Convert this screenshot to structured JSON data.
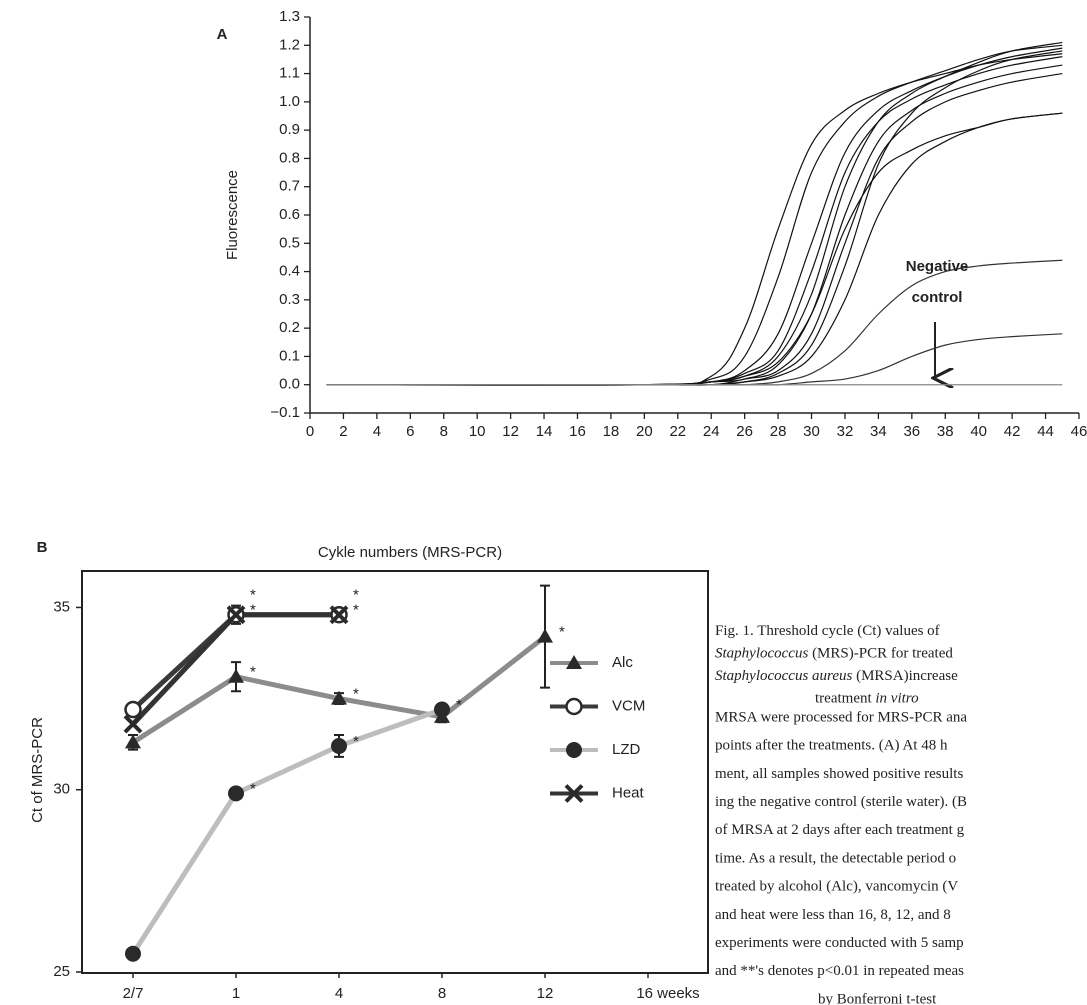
{
  "chart_data": [
    {
      "type": "line",
      "panel": "A",
      "xlabel": "Cykle numbers (MRS-PCR)",
      "ylabel": "Fluorescence",
      "x": [
        1,
        20,
        24,
        26,
        28,
        30,
        32,
        34,
        36,
        38,
        40,
        42,
        45
      ],
      "series": [
        {
          "color": "#111111",
          "values": [
            0,
            0,
            0.03,
            0.2,
            0.55,
            0.85,
            0.97,
            1.03,
            1.07,
            1.1,
            1.13,
            1.15,
            1.17
          ]
        },
        {
          "color": "#111111",
          "values": [
            0,
            0,
            0.02,
            0.1,
            0.38,
            0.75,
            0.93,
            1.02,
            1.07,
            1.11,
            1.15,
            1.18,
            1.2
          ]
        },
        {
          "color": "#111111",
          "values": [
            0,
            0,
            0.01,
            0.05,
            0.18,
            0.5,
            0.82,
            0.97,
            1.04,
            1.09,
            1.13,
            1.16,
            1.19
          ]
        },
        {
          "color": "#111111",
          "values": [
            0,
            0,
            0.01,
            0.04,
            0.12,
            0.4,
            0.75,
            0.93,
            1.01,
            1.06,
            1.1,
            1.13,
            1.16
          ]
        },
        {
          "color": "#111111",
          "values": [
            0,
            0,
            0.01,
            0.03,
            0.1,
            0.32,
            0.7,
            0.93,
            1.03,
            1.09,
            1.14,
            1.18,
            1.21
          ]
        },
        {
          "color": "#111111",
          "values": [
            0,
            0,
            0.01,
            0.02,
            0.07,
            0.25,
            0.6,
            0.86,
            0.97,
            1.03,
            1.07,
            1.1,
            1.13
          ]
        },
        {
          "color": "#111111",
          "values": [
            0,
            0,
            0,
            0.02,
            0.05,
            0.18,
            0.5,
            0.8,
            0.93,
            1.0,
            1.04,
            1.07,
            1.1
          ]
        },
        {
          "color": "#111111",
          "values": [
            0,
            0,
            0,
            0.01,
            0.04,
            0.14,
            0.42,
            0.78,
            0.96,
            1.05,
            1.11,
            1.15,
            1.18
          ]
        },
        {
          "color": "#111111",
          "values": [
            0,
            0,
            0,
            0.01,
            0.03,
            0.1,
            0.3,
            0.6,
            0.78,
            0.86,
            0.91,
            0.94,
            0.96
          ]
        },
        {
          "color": "#111111",
          "values": [
            0,
            0,
            0.01,
            0.03,
            0.08,
            0.25,
            0.55,
            0.75,
            0.83,
            0.88,
            0.91,
            0.94,
            0.96
          ]
        },
        {
          "color": "#333333",
          "values": [
            0,
            0,
            0,
            0,
            0.01,
            0.04,
            0.12,
            0.25,
            0.35,
            0.4,
            0.42,
            0.43,
            0.44
          ]
        },
        {
          "color": "#333333",
          "values": [
            0,
            0,
            0,
            0,
            0,
            0.01,
            0.02,
            0.05,
            0.1,
            0.14,
            0.16,
            0.17,
            0.18
          ]
        },
        {
          "color": "#888888",
          "values": [
            0,
            0,
            0,
            0,
            0,
            0,
            0,
            0,
            0,
            0,
            0,
            0,
            0
          ]
        }
      ],
      "annotation": [
        "Negative",
        "control"
      ],
      "xlim": [
        0,
        46
      ],
      "xticks": [
        0,
        2,
        4,
        6,
        8,
        10,
        12,
        14,
        16,
        18,
        20,
        22,
        24,
        26,
        28,
        30,
        32,
        34,
        36,
        38,
        40,
        42,
        44,
        46
      ],
      "ylim": [
        -0.1,
        1.3
      ],
      "yticks": [
        {
          "value": -0.1,
          "label": "−0.1"
        },
        {
          "value": 0,
          "label": "0.0"
        },
        0.1,
        0.2,
        0.3,
        0.4,
        0.5,
        0.6,
        0.7,
        0.8,
        0.9,
        {
          "value": 1,
          "label": "1.0"
        },
        1.1,
        1.2,
        1.3
      ]
    },
    {
      "type": "line",
      "panel": "B",
      "ylabel": "Ct of MRS-PCR",
      "categories": [
        "2/7",
        "1",
        "4",
        "8",
        "12",
        "16 weeks"
      ],
      "series": [
        {
          "name": "Alc",
          "color": "#8c8c8c",
          "marker": "triangle",
          "marker_color": "#2a2a2a",
          "values": [
            31.3,
            33.1,
            32.5,
            32.0,
            34.2,
            null
          ],
          "errors": [
            0.2,
            0.4,
            0.15,
            0.15,
            1.4,
            null
          ],
          "significance": [
            null,
            "*",
            "*",
            null,
            "*",
            null
          ]
        },
        {
          "name": "VCM",
          "color": "#3a3a3a",
          "marker": "open-circle",
          "marker_color": "#2a2a2a",
          "values": [
            32.2,
            34.8,
            34.8,
            null,
            null,
            null
          ],
          "errors": [
            null,
            0.25,
            null,
            null,
            null,
            null
          ],
          "significance": [
            null,
            "*",
            "*",
            null,
            null,
            null
          ]
        },
        {
          "name": "LZD",
          "color": "#bdbdbd",
          "marker": "circle",
          "marker_color": "#2a2a2a",
          "values": [
            25.5,
            29.9,
            31.2,
            32.2,
            null,
            null
          ],
          "errors": [
            null,
            null,
            0.3,
            null,
            null,
            null
          ],
          "significance": [
            null,
            "*",
            "*",
            "*",
            null,
            null
          ]
        },
        {
          "name": "Heat",
          "color": "#333333",
          "marker": "x",
          "marker_color": "#2a2a2a",
          "values": [
            31.8,
            34.8,
            34.8,
            null,
            null,
            null
          ],
          "significance": [
            null,
            "*",
            "*",
            null,
            null,
            null
          ]
        }
      ],
      "ylim": [
        25,
        36
      ],
      "yticks": [
        25,
        30,
        35
      ],
      "legend": "center right"
    }
  ],
  "caption": {
    "title": [
      [
        {
          "text": "Fig. 1. Threshold cycle (Ct) values of"
        }
      ],
      [
        {
          "text": "Staphylococcus",
          "italic": true
        },
        {
          "text": " (MRS)-PCR for treated"
        }
      ],
      [
        {
          "text": "Staphylococcus aureus",
          "italic": true
        },
        {
          "text": " (MRSA)increase"
        }
      ],
      [
        {
          "text": "treatment "
        },
        {
          "text": "in vitro",
          "italic": true
        }
      ]
    ],
    "body": [
      "MRSA were processed for MRS-PCR ana",
      "points after the treatments. (A) At 48 h",
      "ment, all samples showed positive results",
      "ing the negative control (sterile water). (B",
      "of MRSA at 2 days after each treatment g",
      "time. As a result, the detectable period o",
      "treated by alcohol (Alc), vancomycin (V",
      "and heat were less than 16, 8, 12, and 8",
      "experiments were conducted with 5 samp",
      "and **'s denotes p<0.01 in repeated meas",
      "by Bonferroni t-test"
    ]
  }
}
